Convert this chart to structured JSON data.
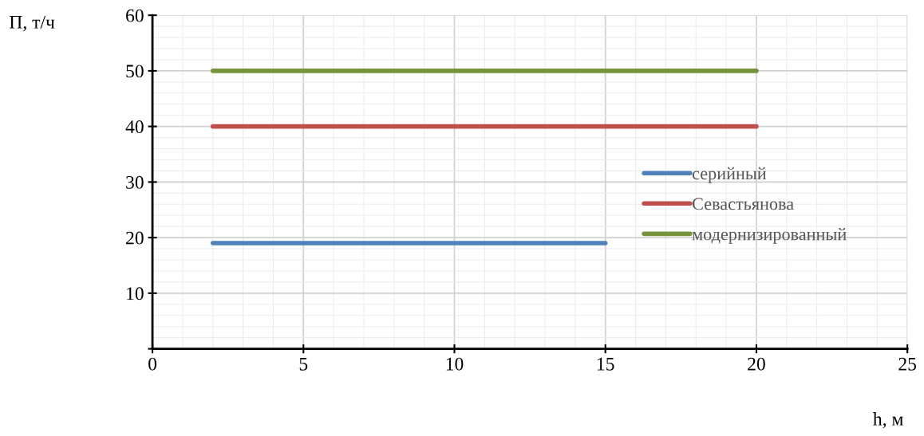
{
  "chart_data": {
    "type": "line",
    "xlabel": "h, м",
    "ylabel": "П, т/ч",
    "series": [
      {
        "name": "серийный",
        "color": "#4f81bd",
        "x": [
          2,
          15
        ],
        "values": [
          19,
          19
        ]
      },
      {
        "name": "Севастьянова",
        "color": "#c0504d",
        "x": [
          2,
          20
        ],
        "values": [
          40,
          40
        ]
      },
      {
        "name": "модернизированный",
        "color": "#77933c",
        "x": [
          2,
          20
        ],
        "values": [
          50,
          50
        ]
      }
    ],
    "xlim": [
      0,
      25
    ],
    "xticks": [
      0,
      5,
      10,
      15,
      20,
      25
    ],
    "ylim": [
      0,
      60
    ],
    "yticks": [
      {
        "value": 0,
        "label": null
      },
      10,
      20,
      30,
      40,
      50,
      60
    ],
    "grid": true,
    "legend": "right",
    "marker": "none",
    "line_style": "solid"
  }
}
